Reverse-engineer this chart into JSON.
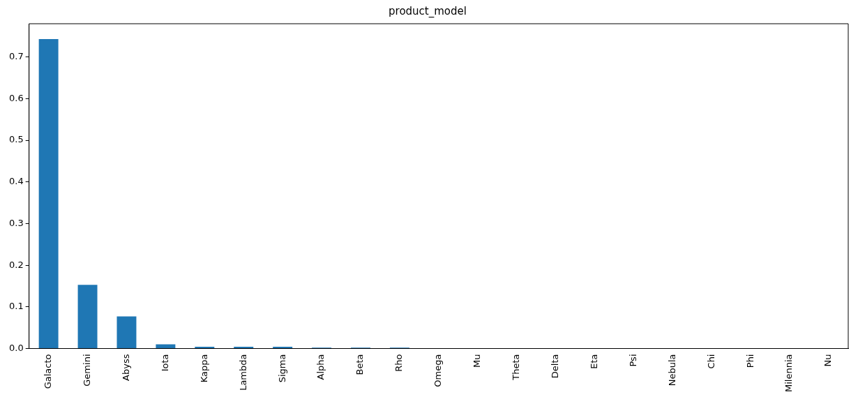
{
  "chart_data": {
    "type": "bar",
    "title": "product_model",
    "categories": [
      "Galacto",
      "Gemini",
      "Abyss",
      "Iota",
      "Kappa",
      "Lambda",
      "Sigma",
      "Alpha",
      "Beta",
      "Rho",
      "Omega",
      "Mu",
      "Theta",
      "Delta",
      "Eta",
      "Psi",
      "Nebula",
      "Chi",
      "Phi",
      "Milennia",
      "Nu"
    ],
    "values": [
      0.743,
      0.153,
      0.077,
      0.01,
      0.004,
      0.004,
      0.004,
      0.002,
      0.002,
      0.002,
      0,
      0,
      0,
      0,
      0,
      0,
      0,
      0,
      0,
      0,
      0
    ],
    "color": "#1f77b4",
    "ylim": [
      0,
      0.78
    ],
    "yticks": [
      {
        "value": 0,
        "label": "0.0"
      },
      {
        "value": 0.1,
        "label": "0.1"
      },
      {
        "value": 0.2,
        "label": "0.2"
      },
      {
        "value": 0.3,
        "label": "0.3"
      },
      {
        "value": 0.4,
        "label": "0.4"
      },
      {
        "value": 0.5,
        "label": "0.5"
      },
      {
        "value": 0.6,
        "label": "0.6"
      },
      {
        "value": 0.7,
        "label": "0.7"
      }
    ],
    "grid": false,
    "legend": false
  }
}
